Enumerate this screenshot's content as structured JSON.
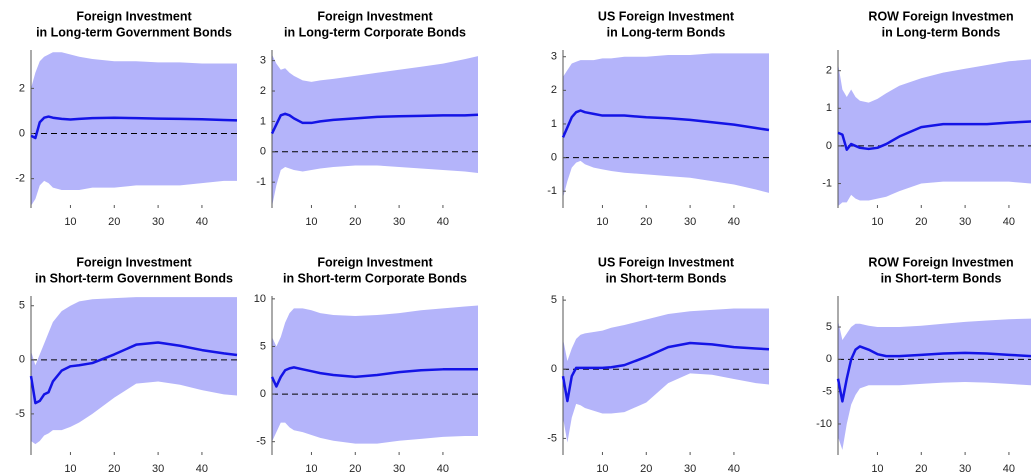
{
  "chart_data": [
    {
      "type": "line",
      "title": [
        "Foreign Investment",
        "in Long-term Government Bonds"
      ],
      "x": [
        1,
        2,
        3,
        4,
        5,
        6,
        8,
        10,
        12,
        15,
        20,
        25,
        30,
        35,
        40,
        45,
        48
      ],
      "values": [
        -0.1,
        -0.2,
        0.5,
        0.7,
        0.75,
        0.7,
        0.65,
        0.62,
        0.65,
        0.68,
        0.7,
        0.68,
        0.66,
        0.65,
        0.63,
        0.6,
        0.58
      ],
      "upper": [
        2.0,
        2.7,
        3.2,
        3.4,
        3.5,
        3.6,
        3.6,
        3.5,
        3.4,
        3.3,
        3.2,
        3.2,
        3.15,
        3.15,
        3.1,
        3.1,
        3.1
      ],
      "lower": [
        -3.2,
        -2.9,
        -2.3,
        -2.1,
        -2.2,
        -2.4,
        -2.5,
        -2.5,
        -2.5,
        -2.4,
        -2.4,
        -2.3,
        -2.3,
        -2.3,
        -2.2,
        -2.1,
        -2.1
      ],
      "color": "#1414e6",
      "band_color": "#b4b4fa",
      "zero_line": true,
      "xlim": [
        1,
        48
      ],
      "xticks": [
        10,
        20,
        30,
        40
      ],
      "ylim": [
        -3.3,
        3.7
      ],
      "yticks": [
        -2,
        0,
        2
      ]
    },
    {
      "type": "line",
      "title": [
        "Foreign Investment",
        "in Long-term Corporate Bonds"
      ],
      "x": [
        1,
        2,
        3,
        4,
        5,
        6,
        8,
        10,
        12,
        15,
        20,
        25,
        30,
        35,
        40,
        45,
        48
      ],
      "values": [
        0.6,
        0.9,
        1.2,
        1.25,
        1.2,
        1.1,
        0.95,
        0.95,
        1.0,
        1.05,
        1.1,
        1.15,
        1.17,
        1.18,
        1.2,
        1.2,
        1.22
      ],
      "upper": [
        3.2,
        2.9,
        2.7,
        2.75,
        2.6,
        2.5,
        2.35,
        2.3,
        2.35,
        2.4,
        2.5,
        2.6,
        2.7,
        2.8,
        2.9,
        3.05,
        3.15
      ],
      "lower": [
        -1.8,
        -1.1,
        -0.6,
        -0.5,
        -0.55,
        -0.6,
        -0.65,
        -0.6,
        -0.55,
        -0.5,
        -0.45,
        -0.45,
        -0.5,
        -0.55,
        -0.6,
        -0.65,
        -0.7
      ],
      "color": "#1414e6",
      "band_color": "#b4b4fa",
      "zero_line": true,
      "xlim": [
        1,
        48
      ],
      "xticks": [
        10,
        20,
        30,
        40
      ],
      "ylim": [
        -1.85,
        3.35
      ],
      "yticks": [
        -1,
        0,
        1,
        2,
        3
      ]
    },
    {
      "type": "line",
      "title": [
        "US Foreign Investment",
        "in Long-term Bonds"
      ],
      "x": [
        1,
        2,
        3,
        4,
        5,
        6,
        8,
        10,
        12,
        15,
        20,
        25,
        30,
        35,
        40,
        45,
        48
      ],
      "values": [
        0.6,
        0.9,
        1.2,
        1.35,
        1.4,
        1.35,
        1.3,
        1.25,
        1.25,
        1.25,
        1.2,
        1.17,
        1.12,
        1.05,
        0.98,
        0.88,
        0.82
      ],
      "upper": [
        2.4,
        2.6,
        2.8,
        2.85,
        2.9,
        2.9,
        2.9,
        2.95,
        2.95,
        3.0,
        3.0,
        3.05,
        3.05,
        3.1,
        3.1,
        3.1,
        3.1
      ],
      "lower": [
        -1.2,
        -0.7,
        -0.3,
        -0.15,
        -0.1,
        -0.2,
        -0.3,
        -0.35,
        -0.4,
        -0.45,
        -0.5,
        -0.55,
        -0.6,
        -0.7,
        -0.8,
        -0.95,
        -1.05
      ],
      "color": "#1414e6",
      "band_color": "#b4b4fa",
      "zero_line": true,
      "xlim": [
        1,
        48
      ],
      "xticks": [
        10,
        20,
        30,
        40
      ],
      "ylim": [
        -1.5,
        3.2
      ],
      "yticks": [
        -1,
        0,
        1,
        2,
        3
      ]
    },
    {
      "type": "line",
      "title": [
        "ROW Foreign Investmen",
        "in Long-term Bonds"
      ],
      "x": [
        1,
        2,
        3,
        4,
        5,
        6,
        8,
        10,
        12,
        15,
        20,
        25,
        30,
        35,
        40,
        45,
        48
      ],
      "values": [
        0.35,
        0.3,
        -0.1,
        0.05,
        0.0,
        -0.05,
        -0.08,
        -0.05,
        0.05,
        0.25,
        0.5,
        0.58,
        0.58,
        0.58,
        0.62,
        0.65,
        0.65
      ],
      "upper": [
        2.2,
        1.5,
        1.3,
        1.5,
        1.3,
        1.2,
        1.15,
        1.25,
        1.4,
        1.6,
        1.8,
        1.95,
        2.05,
        2.15,
        2.25,
        2.3,
        2.35
      ],
      "lower": [
        -1.6,
        -1.5,
        -1.5,
        -1.3,
        -1.4,
        -1.45,
        -1.45,
        -1.4,
        -1.35,
        -1.2,
        -1.0,
        -0.95,
        -0.95,
        -0.95,
        -0.95,
        -1.0,
        -1.0
      ],
      "color": "#1414e6",
      "band_color": "#b4b4fa",
      "zero_line": true,
      "xlim": [
        1,
        48
      ],
      "xticks": [
        10,
        20,
        30,
        40
      ],
      "ylim": [
        -1.65,
        2.55
      ],
      "yticks": [
        -1,
        0,
        1,
        2
      ]
    },
    {
      "type": "line",
      "title": [
        "Foreign Investment",
        "in Short-term Government Bonds"
      ],
      "x": [
        1,
        2,
        3,
        4,
        5,
        6,
        8,
        10,
        12,
        15,
        20,
        25,
        30,
        35,
        40,
        45,
        48
      ],
      "values": [
        -1.5,
        -4.0,
        -3.8,
        -3.2,
        -3.0,
        -2.0,
        -1.0,
        -0.6,
        -0.5,
        -0.3,
        0.5,
        1.4,
        1.6,
        1.3,
        0.9,
        0.6,
        0.45
      ],
      "upper": [
        0.8,
        -0.5,
        0.5,
        1.5,
        2.5,
        3.5,
        4.5,
        5.0,
        5.4,
        5.6,
        5.7,
        5.8,
        5.8,
        5.8,
        5.8,
        5.8,
        5.8
      ],
      "lower": [
        -7.5,
        -7.8,
        -7.5,
        -7.0,
        -6.8,
        -6.5,
        -6.5,
        -6.2,
        -5.8,
        -5.0,
        -3.5,
        -2.2,
        -2.0,
        -2.3,
        -2.8,
        -3.2,
        -3.3
      ],
      "color": "#1414e6",
      "band_color": "#b4b4fa",
      "zero_line": true,
      "xlim": [
        1,
        48
      ],
      "xticks": [
        10,
        20,
        30,
        40
      ],
      "ylim": [
        -8.8,
        5.9
      ],
      "yticks": [
        -5,
        0,
        5
      ]
    },
    {
      "type": "line",
      "title": [
        "Foreign Investment",
        "in Short-term Corporate Bonds"
      ],
      "x": [
        1,
        2,
        3,
        4,
        5,
        6,
        8,
        10,
        12,
        15,
        20,
        25,
        30,
        35,
        40,
        45,
        48
      ],
      "values": [
        1.8,
        0.8,
        1.8,
        2.5,
        2.7,
        2.8,
        2.6,
        2.4,
        2.2,
        2.0,
        1.8,
        2.0,
        2.3,
        2.5,
        2.6,
        2.6,
        2.6
      ],
      "upper": [
        6,
        5,
        6,
        7.5,
        8.5,
        9,
        9,
        8.8,
        8.5,
        8.3,
        8.2,
        8.3,
        8.5,
        8.8,
        9.0,
        9.2,
        9.3
      ],
      "lower": [
        -5,
        -4,
        -3,
        -3,
        -3.5,
        -3.8,
        -4,
        -4.3,
        -4.6,
        -4.9,
        -5.2,
        -5.2,
        -4.9,
        -4.7,
        -4.5,
        -4.4,
        -4.4
      ],
      "color": "#1414e6",
      "band_color": "#b4b4fa",
      "zero_line": true,
      "xlim": [
        1,
        48
      ],
      "xticks": [
        10,
        20,
        30,
        40
      ],
      "ylim": [
        -6.4,
        10.3
      ],
      "yticks": [
        -5,
        0,
        5,
        10
      ]
    },
    {
      "type": "line",
      "title": [
        "US Foreign Investment",
        "in Short-term Bonds"
      ],
      "x": [
        1,
        2,
        3,
        4,
        5,
        6,
        8,
        10,
        12,
        15,
        20,
        25,
        30,
        35,
        40,
        45,
        48
      ],
      "values": [
        -0.5,
        -2.3,
        -0.5,
        0.1,
        0.1,
        0.1,
        0.1,
        0.1,
        0.15,
        0.3,
        0.9,
        1.6,
        1.9,
        1.8,
        1.6,
        1.5,
        1.45
      ],
      "upper": [
        2.2,
        0.6,
        1.5,
        2.2,
        2.5,
        2.6,
        2.7,
        2.8,
        3.0,
        3.2,
        3.6,
        4.0,
        4.2,
        4.3,
        4.4,
        4.4,
        4.4
      ],
      "lower": [
        -3.5,
        -5.3,
        -3.5,
        -2.5,
        -2.6,
        -2.8,
        -3.0,
        -3.2,
        -3.2,
        -3.1,
        -2.4,
        -1.0,
        -0.3,
        -0.4,
        -0.7,
        -1.0,
        -1.1
      ],
      "color": "#1414e6",
      "band_color": "#b4b4fa",
      "zero_line": true,
      "xlim": [
        1,
        48
      ],
      "xticks": [
        10,
        20,
        30,
        40
      ],
      "ylim": [
        -6.2,
        5.3
      ],
      "yticks": [
        -5,
        0,
        5
      ]
    },
    {
      "type": "line",
      "title": [
        "ROW Foreign Investmen",
        "in Short-term Bonds"
      ],
      "x": [
        1,
        2,
        3,
        4,
        5,
        6,
        8,
        10,
        12,
        15,
        20,
        25,
        30,
        35,
        40,
        45,
        48
      ],
      "values": [
        -3,
        -6.5,
        -3,
        0,
        1.5,
        2,
        1.5,
        0.8,
        0.5,
        0.5,
        0.7,
        0.9,
        1.0,
        0.9,
        0.7,
        0.5,
        0.4
      ],
      "upper": [
        6,
        3,
        4,
        5,
        5.5,
        5.5,
        5.2,
        5,
        5,
        5,
        5.2,
        5.5,
        5.8,
        6,
        6.2,
        6.3,
        6.4
      ],
      "lower": [
        -12,
        -14,
        -10,
        -7,
        -5.5,
        -4.5,
        -4,
        -4,
        -4,
        -4,
        -3.8,
        -3.6,
        -3.5,
        -3.6,
        -3.8,
        -4,
        -4.2
      ],
      "color": "#1414e6",
      "band_color": "#b4b4fa",
      "zero_line": true,
      "xlim": [
        1,
        48
      ],
      "xticks": [
        10,
        20,
        30,
        40
      ],
      "ylim": [
        -14.8,
        9.8
      ],
      "yticks": [
        -10,
        -5,
        0,
        5
      ]
    }
  ]
}
